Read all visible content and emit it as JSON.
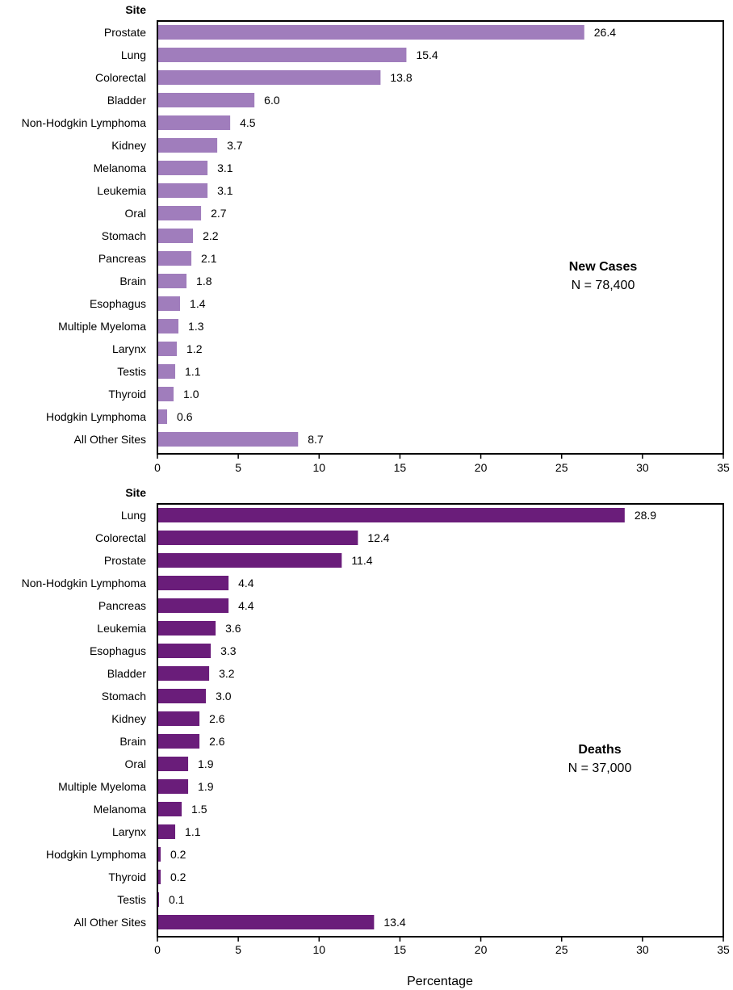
{
  "chart_data": [
    {
      "type": "bar",
      "orientation": "horizontal",
      "category_header": "Site",
      "panel_label": "New Cases",
      "panel_note": "N = 78,400",
      "xlabel": "",
      "xlim": [
        0,
        35
      ],
      "xticks": [
        0,
        5,
        10,
        15,
        20,
        25,
        30,
        35
      ],
      "grid": false,
      "bar_color": "#a07dbc",
      "categories": [
        "Prostate",
        "Lung",
        "Colorectal",
        "Bladder",
        "Non-Hodgkin Lymphoma",
        "Kidney",
        "Melanoma",
        "Leukemia",
        "Oral",
        "Stomach",
        "Pancreas",
        "Brain",
        "Esophagus",
        "Multiple Myeloma",
        "Larynx",
        "Testis",
        "Thyroid",
        "Hodgkin Lymphoma",
        "All Other Sites"
      ],
      "values": [
        26.4,
        15.4,
        13.8,
        6.0,
        4.5,
        3.7,
        3.1,
        3.1,
        2.7,
        2.2,
        2.1,
        1.8,
        1.4,
        1.3,
        1.2,
        1.1,
        1.0,
        0.6,
        8.7
      ],
      "value_labels": [
        "26.4",
        "15.4",
        "13.8",
        "6.0",
        "4.5",
        "3.7",
        "3.1",
        "3.1",
        "2.7",
        "2.2",
        "2.1",
        "1.8",
        "1.4",
        "1.3",
        "1.2",
        "1.1",
        "1.0",
        "0.6",
        "8.7"
      ]
    },
    {
      "type": "bar",
      "orientation": "horizontal",
      "category_header": "Site",
      "panel_label": "Deaths",
      "panel_note": "N = 37,000",
      "xlabel": "Percentage",
      "xlim": [
        0,
        35
      ],
      "xticks": [
        0,
        5,
        10,
        15,
        20,
        25,
        30,
        35
      ],
      "grid": false,
      "bar_color": "#6a1d7a",
      "categories": [
        "Lung",
        "Colorectal",
        "Prostate",
        "Non-Hodgkin Lymphoma",
        "Pancreas",
        "Leukemia",
        "Esophagus",
        "Bladder",
        "Stomach",
        "Kidney",
        "Brain",
        "Oral",
        "Multiple Myeloma",
        "Melanoma",
        "Larynx",
        "Hodgkin Lymphoma",
        "Thyroid",
        "Testis",
        "All Other Sites"
      ],
      "values": [
        28.9,
        12.4,
        11.4,
        4.4,
        4.4,
        3.6,
        3.3,
        3.2,
        3.0,
        2.6,
        2.6,
        1.9,
        1.9,
        1.5,
        1.1,
        0.2,
        0.2,
        0.1,
        13.4
      ],
      "value_labels": [
        "28.9",
        "12.4",
        "11.4",
        "4.4",
        "4.4",
        "3.6",
        "3.3",
        "3.2",
        "3.0",
        "2.6",
        "2.6",
        "1.9",
        "1.9",
        "1.5",
        "1.1",
        "0.2",
        "0.2",
        "0.1",
        "13.4"
      ]
    }
  ]
}
